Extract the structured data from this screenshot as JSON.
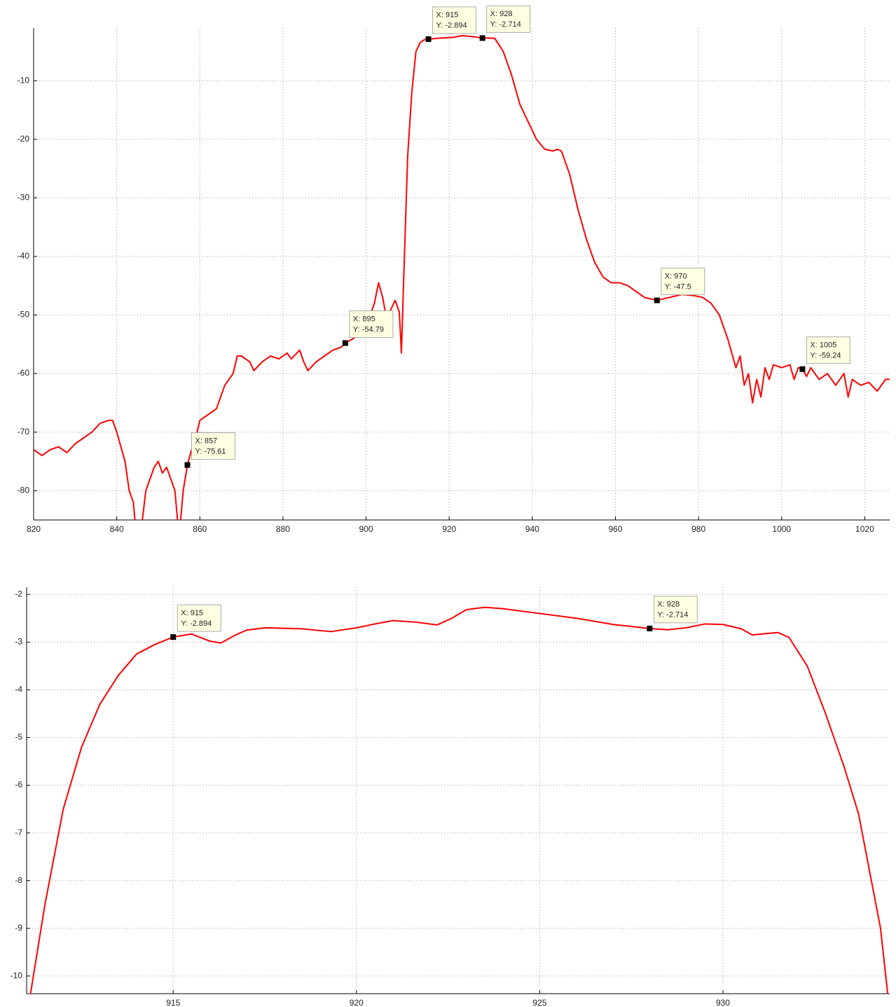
{
  "chart_data": [
    {
      "type": "line",
      "x": [
        820,
        822,
        824,
        826,
        828,
        830,
        832,
        834,
        836,
        838,
        839,
        840,
        842,
        843,
        844,
        845,
        846,
        847,
        848,
        849,
        850,
        851,
        852,
        853,
        854,
        855,
        856,
        857,
        858,
        859,
        860,
        862,
        864,
        866,
        868,
        869,
        870,
        872,
        873,
        875,
        877,
        879,
        881,
        882,
        884,
        885,
        886,
        888,
        890,
        892,
        894,
        895,
        897,
        899,
        901,
        902,
        903,
        904,
        905,
        906,
        907,
        908,
        908.5,
        909,
        910,
        911,
        912,
        913,
        914,
        915,
        918,
        921,
        923,
        926,
        928,
        930,
        931,
        933,
        935,
        937,
        939,
        941,
        943,
        945,
        946,
        947,
        949,
        951,
        953,
        955,
        957,
        959,
        961,
        963,
        965,
        967,
        970,
        973,
        976,
        979,
        981,
        983,
        985,
        987,
        989,
        990,
        991,
        992,
        993,
        994,
        995,
        996,
        997,
        998,
        1000,
        1002,
        1003,
        1004,
        1005,
        1006,
        1007,
        1009,
        1011,
        1013,
        1015,
        1016,
        1017,
        1019,
        1021,
        1023,
        1025,
        1026
      ],
      "series": [
        {
          "color": "#ff0000",
          "values": [
            -73,
            -74,
            -73,
            -72.5,
            -73.5,
            -72,
            -71,
            -70,
            -68.5,
            -68,
            -68,
            -70,
            -75,
            -80,
            -82,
            -90,
            -86,
            -80,
            -78,
            -76,
            -75,
            -77,
            -76,
            -78,
            -80,
            -88,
            -80,
            -75.61,
            -73,
            -71,
            -68,
            -67,
            -66,
            -62,
            -60,
            -57,
            -57,
            -58,
            -59.5,
            -58,
            -57,
            -57.5,
            -56.5,
            -57.5,
            -56,
            -58,
            -59.5,
            -58,
            -57,
            -56,
            -55.5,
            -54.79,
            -54,
            -52,
            -50,
            -48,
            -44.5,
            -47,
            -51,
            -49,
            -47.5,
            -49.5,
            -56.5,
            -45,
            -23,
            -12,
            -5,
            -3.5,
            -3,
            -2.894,
            -2.7,
            -2.6,
            -2.3,
            -2.5,
            -2.714,
            -2.7,
            -2.8,
            -5,
            -9,
            -14,
            -17,
            -20,
            -21.7,
            -22,
            -21.7,
            -22,
            -26,
            -32,
            -37,
            -41,
            -43.5,
            -44.5,
            -44.5,
            -45,
            -46,
            -47,
            -47.5,
            -47,
            -46.5,
            -46.7,
            -47,
            -48,
            -50,
            -54,
            -59,
            -57,
            -62,
            -60,
            -65,
            -61,
            -64,
            -59,
            -61,
            -58.5,
            -59,
            -58.5,
            -61,
            -59,
            -59.24,
            -60.5,
            -59,
            -61,
            -60,
            -62,
            -60,
            -64,
            -61,
            -62,
            -61.5,
            -63,
            -61,
            -61
          ]
        }
      ],
      "xlim": [
        820,
        1026
      ],
      "ylim": [
        -85,
        -1
      ],
      "xticks": [
        820,
        840,
        860,
        880,
        900,
        920,
        940,
        960,
        980,
        1000,
        1020
      ],
      "yticks": [
        -80,
        -70,
        -60,
        -50,
        -40,
        -30,
        -20,
        -10
      ],
      "grid": true,
      "annotations": [
        {
          "x": 857,
          "y": -75.61,
          "x_label": "X: 857",
          "y_label": "Y: -75.61"
        },
        {
          "x": 895,
          "y": -54.79,
          "x_label": "X: 895",
          "y_label": "Y: -54.79"
        },
        {
          "x": 915,
          "y": -2.894,
          "x_label": "X: 915",
          "y_label": "Y: -2.894"
        },
        {
          "x": 928,
          "y": -2.714,
          "x_label": "X: 928",
          "y_label": "Y: -2.714"
        },
        {
          "x": 970,
          "y": -47.5,
          "x_label": "X: 970",
          "y_label": "Y: -47.5"
        },
        {
          "x": 1005,
          "y": -59.24,
          "x_label": "X: 1005",
          "y_label": "Y: -59.24"
        }
      ]
    },
    {
      "type": "line",
      "x": [
        911.1,
        911.5,
        912,
        912.5,
        913,
        913.5,
        914,
        914.5,
        915,
        915.5,
        916,
        916.3,
        916.7,
        917,
        917.5,
        918.5,
        919.3,
        920,
        920.5,
        921,
        921.6,
        922.2,
        922.6,
        923,
        923.5,
        924,
        925,
        926,
        927,
        928,
        928.5,
        929,
        929.5,
        930,
        930.5,
        930.8,
        931.2,
        931.5,
        931.8,
        932.3,
        932.8,
        933.3,
        933.7,
        934,
        934.3,
        934.5
      ],
      "series": [
        {
          "color": "#ff0000",
          "values": [
            -10.4,
            -8.5,
            -6.5,
            -5.2,
            -4.3,
            -3.7,
            -3.25,
            -3.05,
            -2.894,
            -2.83,
            -2.98,
            -3.02,
            -2.85,
            -2.75,
            -2.7,
            -2.72,
            -2.78,
            -2.7,
            -2.62,
            -2.55,
            -2.58,
            -2.64,
            -2.5,
            -2.32,
            -2.27,
            -2.3,
            -2.4,
            -2.5,
            -2.63,
            -2.714,
            -2.74,
            -2.7,
            -2.62,
            -2.63,
            -2.72,
            -2.85,
            -2.82,
            -2.8,
            -2.9,
            -3.5,
            -4.5,
            -5.6,
            -6.6,
            -7.8,
            -9,
            -10.4
          ]
        }
      ],
      "xlim": [
        911,
        934.55
      ],
      "ylim": [
        -10.37,
        -1.85
      ],
      "xticks": [
        915,
        920,
        925,
        930
      ],
      "yticks": [
        -10,
        -9,
        -8,
        -7,
        -6,
        -5,
        -4,
        -3,
        -2
      ],
      "grid": true,
      "annotations": [
        {
          "x": 915,
          "y": -2.894,
          "x_label": "X: 915",
          "y_label": "Y: -2.894"
        },
        {
          "x": 928,
          "y": -2.714,
          "x_label": "X: 928",
          "y_label": "Y: -2.714"
        }
      ]
    }
  ]
}
